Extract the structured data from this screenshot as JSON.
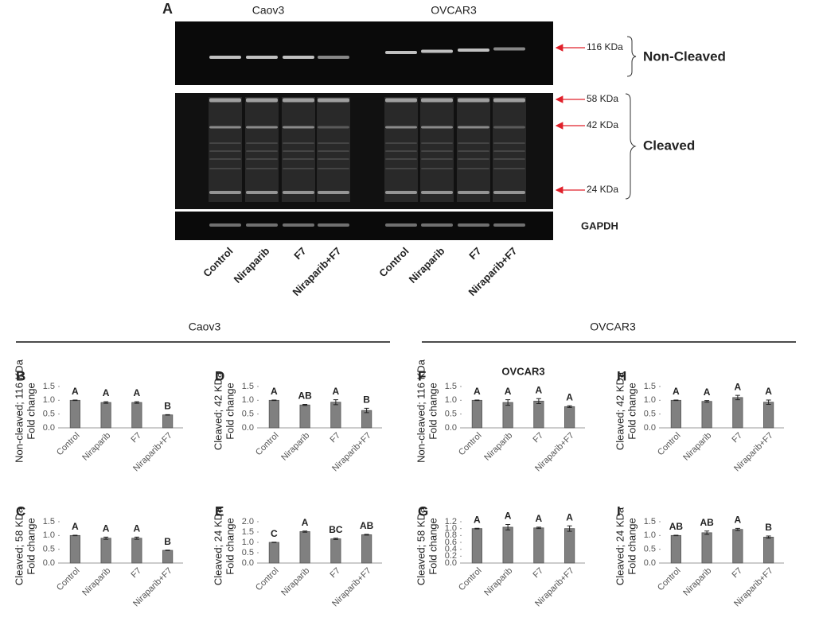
{
  "figure_a": {
    "label": "A",
    "cell_lines": [
      "Caov3",
      "OVCAR3"
    ],
    "markers": [
      "116 KDa",
      "58 KDa",
      "42 KDa",
      "24 KDa"
    ],
    "groups": [
      "Non-Cleaved",
      "Cleaved"
    ],
    "loading_control": "GAPDH",
    "lanes": [
      "Control",
      "Niraparib",
      "F7",
      "Niraparib+F7",
      "Control",
      "Niraparib",
      "F7",
      "Niraparib+F7"
    ]
  },
  "section_titles": [
    "Caov3",
    "OVCAR3"
  ],
  "chart_data": [
    {
      "type": "bar",
      "panel": "B",
      "ylabel": [
        "Non-cleaved; 116 KDa",
        "Fold change"
      ],
      "categories": [
        "Control",
        "Niraparib",
        "F7",
        "Niraparib+F7"
      ],
      "values": [
        1.0,
        0.92,
        0.92,
        0.47
      ],
      "errors": [
        0.01,
        0.03,
        0.03,
        0.01
      ],
      "significance": [
        "A",
        "A",
        "A",
        "B"
      ],
      "color": "#808080",
      "ylim": [
        0,
        1.5
      ],
      "yticks": [
        {
          "value": 0,
          "label": "0.0"
        },
        0.5,
        {
          "value": 1,
          "label": "1.0"
        },
        1.5
      ]
    },
    {
      "type": "bar",
      "panel": "C",
      "ylabel": [
        "Cleaved; 58 KDa",
        "Fold change"
      ],
      "categories": [
        "Control",
        "Niraparib",
        "F7",
        "Niraparib+F7"
      ],
      "values": [
        1.0,
        0.9,
        0.9,
        0.46
      ],
      "errors": [
        0.01,
        0.04,
        0.04,
        0.01
      ],
      "significance": [
        "A",
        "A",
        "A",
        "B"
      ],
      "color": "#808080",
      "ylim": [
        0,
        1.5
      ],
      "yticks": [
        {
          "value": 0,
          "label": "0.0"
        },
        0.5,
        {
          "value": 1,
          "label": "1.0"
        },
        1.5
      ]
    },
    {
      "type": "bar",
      "panel": "D",
      "ylabel": [
        "Cleaved; 42 KDa",
        "Fold change"
      ],
      "categories": [
        "Control",
        "Niraparib",
        "F7",
        "Niraparib+F7"
      ],
      "values": [
        1.0,
        0.83,
        0.93,
        0.63
      ],
      "errors": [
        0.01,
        0.02,
        0.09,
        0.08
      ],
      "significance": [
        "A",
        "AB",
        "A",
        "B"
      ],
      "color": "#808080",
      "ylim": [
        0,
        1.5
      ],
      "yticks": [
        {
          "value": 0,
          "label": "0.0"
        },
        0.5,
        {
          "value": 1,
          "label": "1.0"
        },
        1.5
      ]
    },
    {
      "type": "bar",
      "panel": "E",
      "ylabel": [
        "Cleaved; 24 KDa",
        "Fold change"
      ],
      "categories": [
        "Control",
        "Niraparib",
        "F7",
        "Niraparib+F7"
      ],
      "values": [
        1.0,
        1.52,
        1.17,
        1.37
      ],
      "errors": [
        0.01,
        0.03,
        0.03,
        0.02
      ],
      "significance": [
        "C",
        "A",
        "BC",
        "AB"
      ],
      "color": "#808080",
      "ylim": [
        0,
        2
      ],
      "yticks": [
        {
          "value": 0,
          "label": "0.0"
        },
        0.5,
        {
          "value": 1,
          "label": "1.0"
        },
        1.5,
        {
          "value": 2,
          "label": "2.0"
        }
      ]
    },
    {
      "type": "bar",
      "panel": "F",
      "title": "OVCAR3",
      "ylabel": [
        "Non-cleaved; 116 KDa",
        "Fold change"
      ],
      "categories": [
        "Control",
        "Niraparib",
        "F7",
        "Niraparib+F7"
      ],
      "values": [
        1.0,
        0.92,
        0.97,
        0.77
      ],
      "errors": [
        0.01,
        0.1,
        0.09,
        0.03
      ],
      "significance": [
        "A",
        "A",
        "A",
        "A"
      ],
      "color": "#808080",
      "ylim": [
        0,
        1.5
      ],
      "yticks": [
        {
          "value": 0,
          "label": "0.0"
        },
        0.5,
        {
          "value": 1,
          "label": "1.0"
        },
        1.5
      ]
    },
    {
      "type": "bar",
      "panel": "G",
      "ylabel": [
        "Cleaved; 58 KDa",
        "Fold change"
      ],
      "categories": [
        "Control",
        "Niraparib",
        "F7",
        "Niraparib+F7"
      ],
      "values": [
        1.0,
        1.04,
        1.02,
        1.0
      ],
      "errors": [
        0.01,
        0.08,
        0.02,
        0.08
      ],
      "significance": [
        "A",
        "A",
        "A",
        "A"
      ],
      "color": "#808080",
      "ylim": [
        0,
        1.2
      ],
      "yticks": [
        {
          "value": 0,
          "label": "0.0"
        },
        0.2,
        0.4,
        0.6,
        0.8,
        {
          "value": 1,
          "label": "1.0"
        },
        1.2
      ]
    },
    {
      "type": "bar",
      "panel": "H",
      "ylabel": [
        "Cleaved; 42 KDa",
        "Fold change"
      ],
      "categories": [
        "Control",
        "Niraparib",
        "F7",
        "Niraparib+F7"
      ],
      "values": [
        1.0,
        0.96,
        1.1,
        0.93
      ],
      "errors": [
        0.01,
        0.03,
        0.08,
        0.08
      ],
      "significance": [
        "A",
        "A",
        "A",
        "A"
      ],
      "color": "#808080",
      "ylim": [
        0,
        1.5
      ],
      "yticks": [
        {
          "value": 0,
          "label": "0.0"
        },
        0.5,
        {
          "value": 1,
          "label": "1.0"
        },
        1.5
      ]
    },
    {
      "type": "bar",
      "panel": "I",
      "ylabel": [
        "Cleaved; 24 KDa",
        "Fold change"
      ],
      "categories": [
        "Control",
        "Niraparib",
        "F7",
        "Niraparib+F7"
      ],
      "values": [
        1.0,
        1.1,
        1.22,
        0.94
      ],
      "errors": [
        0.01,
        0.06,
        0.04,
        0.04
      ],
      "significance": [
        "AB",
        "AB",
        "A",
        "B"
      ],
      "color": "#808080",
      "ylim": [
        0,
        1.5
      ],
      "yticks": [
        {
          "value": 0,
          "label": "0.0"
        },
        0.5,
        {
          "value": 1,
          "label": "1.0"
        },
        1.5
      ]
    }
  ]
}
